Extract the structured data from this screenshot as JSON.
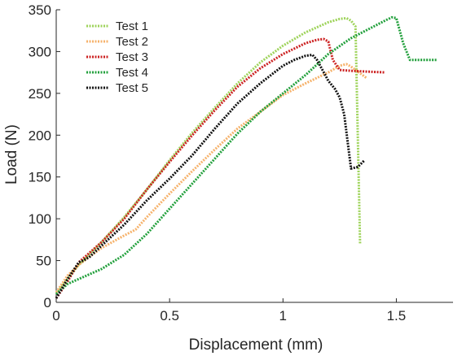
{
  "chart_data": {
    "type": "line",
    "title": "",
    "xlabel": "Displacement (mm)",
    "ylabel": "Load (N)",
    "xlim": [
      0,
      1.75
    ],
    "ylim": [
      0,
      350
    ],
    "xticks": [
      0,
      0.5,
      1,
      1.5
    ],
    "xtick_labels": [
      "0",
      "0.5",
      "1",
      "1.5"
    ],
    "yticks": [
      0,
      50,
      100,
      150,
      200,
      250,
      300,
      350
    ],
    "ytick_labels": [
      "0",
      "50",
      "100",
      "150",
      "200",
      "250",
      "300",
      "350"
    ],
    "grid": false,
    "legend_position": "top-left",
    "series": [
      {
        "name": "Test 1",
        "color": "#9ed35a",
        "x": [
          0,
          0.05,
          0.1,
          0.2,
          0.3,
          0.4,
          0.5,
          0.6,
          0.7,
          0.8,
          0.9,
          1.0,
          1.1,
          1.2,
          1.25,
          1.28,
          1.3,
          1.32,
          1.33,
          1.34
        ],
        "y": [
          10,
          28,
          45,
          72,
          102,
          135,
          170,
          203,
          233,
          262,
          287,
          307,
          323,
          335,
          339,
          340,
          337,
          330,
          200,
          70
        ]
      },
      {
        "name": "Test 2",
        "color": "#f6b26b",
        "x": [
          0,
          0.05,
          0.1,
          0.2,
          0.3,
          0.35,
          0.4,
          0.5,
          0.6,
          0.7,
          0.8,
          0.9,
          1.0,
          1.1,
          1.2,
          1.25,
          1.28,
          1.3,
          1.37
        ],
        "y": [
          12,
          32,
          45,
          65,
          80,
          87,
          102,
          130,
          157,
          183,
          208,
          228,
          248,
          262,
          275,
          283,
          285,
          282,
          268
        ]
      },
      {
        "name": "Test 3",
        "color": "#cc2222",
        "x": [
          0,
          0.05,
          0.1,
          0.2,
          0.3,
          0.4,
          0.5,
          0.6,
          0.7,
          0.8,
          0.9,
          1.0,
          1.1,
          1.15,
          1.18,
          1.2,
          1.22,
          1.25,
          1.3,
          1.37,
          1.45
        ],
        "y": [
          5,
          25,
          48,
          72,
          100,
          135,
          168,
          200,
          230,
          258,
          280,
          297,
          310,
          314,
          315,
          312,
          290,
          278,
          277,
          276,
          275
        ]
      },
      {
        "name": "Test 4",
        "color": "#22a03c",
        "x": [
          0,
          0.05,
          0.1,
          0.2,
          0.3,
          0.4,
          0.5,
          0.6,
          0.7,
          0.8,
          0.9,
          1.0,
          1.1,
          1.2,
          1.3,
          1.4,
          1.45,
          1.48,
          1.5,
          1.53,
          1.56,
          1.6,
          1.68
        ],
        "y": [
          10,
          22,
          28,
          40,
          57,
          82,
          112,
          142,
          172,
          202,
          228,
          250,
          272,
          297,
          316,
          330,
          337,
          341,
          340,
          310,
          290,
          290,
          290
        ]
      },
      {
        "name": "Test 5",
        "color": "#111111",
        "x": [
          0,
          0.05,
          0.08,
          0.1,
          0.12,
          0.15,
          0.2,
          0.3,
          0.4,
          0.5,
          0.6,
          0.7,
          0.8,
          0.9,
          1.0,
          1.05,
          1.1,
          1.13,
          1.15,
          1.18,
          1.2,
          1.23,
          1.25,
          1.27,
          1.3,
          1.33,
          1.36
        ],
        "y": [
          5,
          28,
          40,
          48,
          50,
          55,
          68,
          93,
          122,
          148,
          176,
          208,
          238,
          262,
          283,
          290,
          295,
          296,
          290,
          275,
          265,
          255,
          245,
          225,
          160,
          162,
          170
        ]
      }
    ]
  }
}
